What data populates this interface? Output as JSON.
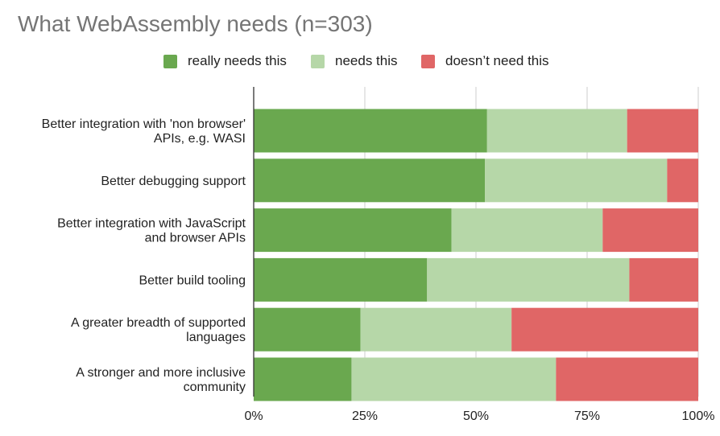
{
  "chart_data": {
    "type": "bar",
    "orientation": "horizontal",
    "stacked": "percent",
    "title": "What WebAssembly needs (n=303)",
    "categories": [
      [
        "Better integration with 'non browser'",
        "APIs, e.g. WASI"
      ],
      [
        "Better debugging support"
      ],
      [
        "Better integration with JavaScript",
        "and browser APIs"
      ],
      [
        "Better build tooling"
      ],
      [
        "A greater breadth of supported",
        "languages"
      ],
      [
        "A stronger and more inclusive",
        "community"
      ]
    ],
    "series": [
      {
        "name": "really needs this",
        "color": "#6aa84f",
        "values": [
          52.5,
          52,
          44.5,
          39,
          24,
          22
        ]
      },
      {
        "name": "needs this",
        "color": "#b6d7a8",
        "values": [
          31.5,
          41,
          34,
          45.5,
          34,
          46
        ]
      },
      {
        "name": "doesn’t need this",
        "color": "#e06666",
        "values": [
          16,
          7,
          21.5,
          15.5,
          42,
          32
        ]
      }
    ],
    "xlim": [
      0,
      100
    ],
    "xticks": [
      "0%",
      "25%",
      "50%",
      "75%",
      "100%"
    ],
    "grid": true,
    "legend_position": "top"
  }
}
